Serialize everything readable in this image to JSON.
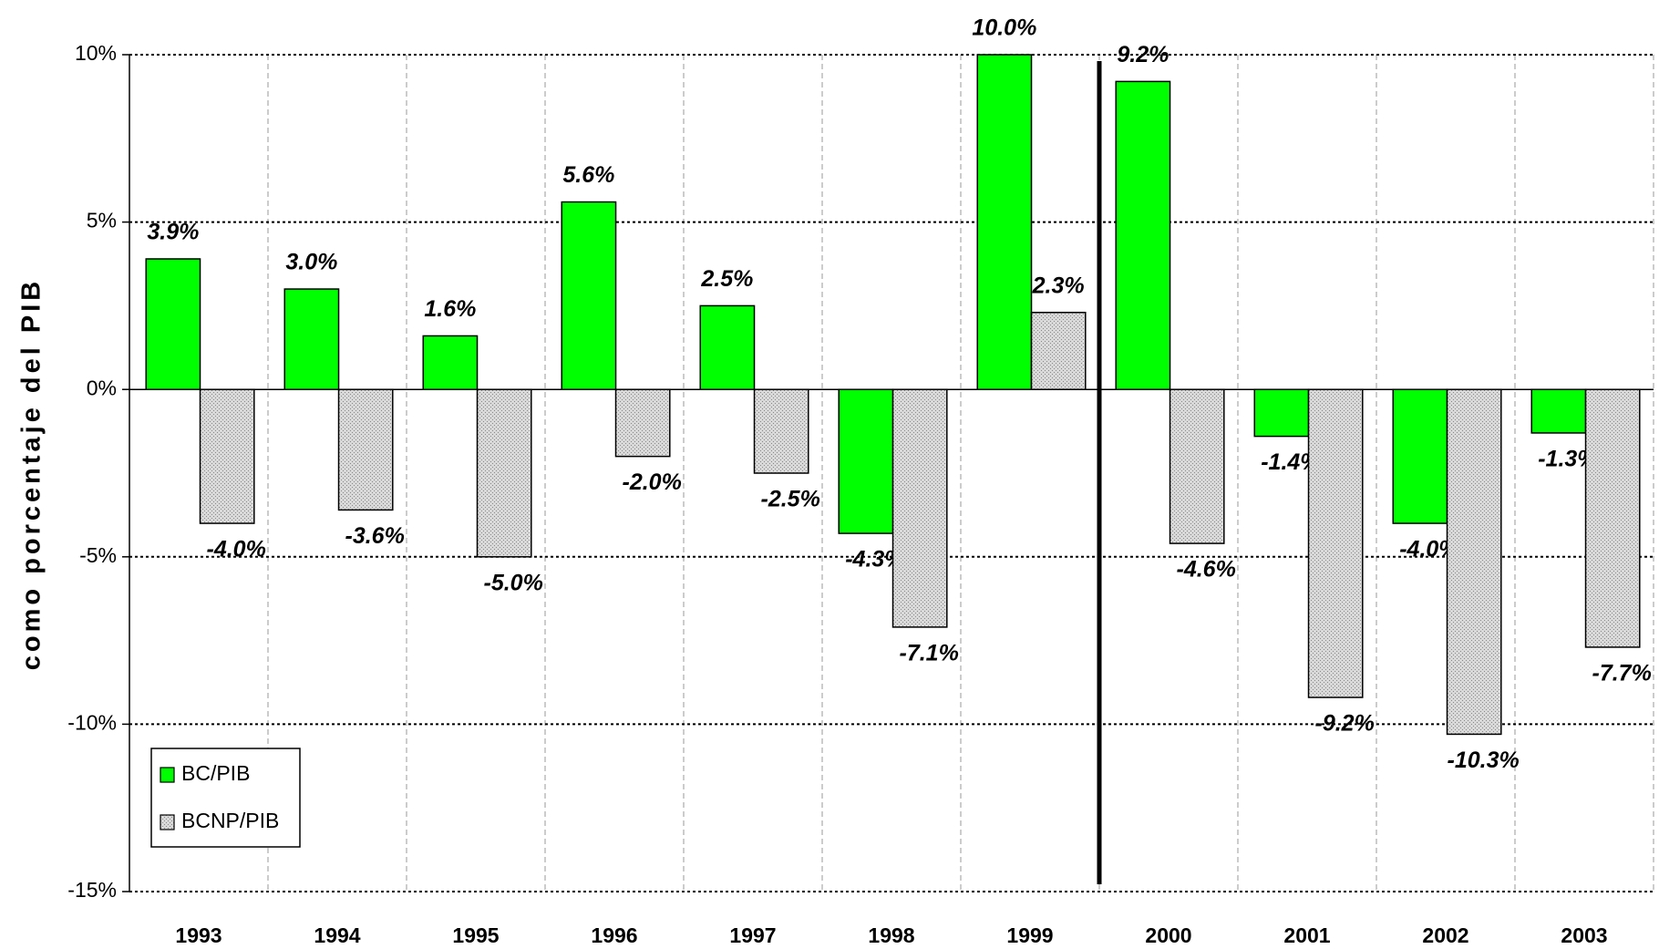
{
  "chart_data": {
    "type": "bar",
    "y_label": "como porcentaje del PIB",
    "categories": [
      "1993",
      "1994",
      "1995",
      "1996",
      "1997",
      "1998",
      "1999",
      "2000",
      "2001",
      "2002",
      "2003"
    ],
    "series": [
      {
        "name": "BC/PIB",
        "color": "#00ff00",
        "values": [
          3.9,
          3.0,
          1.6,
          5.6,
          2.5,
          -4.3,
          10.0,
          9.2,
          -1.4,
          -4.0,
          -1.3
        ],
        "value_labels": [
          "3.9%",
          "3.0%",
          "1.6%",
          "5.6%",
          "2.5%",
          "-4.3%",
          "10.0%",
          "9.2%",
          "-1.4%",
          "-4.0%",
          "-1.3%"
        ]
      },
      {
        "name": "BCNP/PIB",
        "color": "#d9d9d9",
        "values": [
          -4.0,
          -3.6,
          -5.0,
          -2.0,
          -2.5,
          -7.1,
          2.3,
          -4.6,
          -9.2,
          -10.3,
          -7.7
        ],
        "value_labels": [
          "-4.0%",
          "-3.6%",
          "-5.0%",
          "-2.0%",
          "-2.5%",
          "-7.1%",
          "2.3%",
          "-4.6%",
          "-9.2%",
          "-10.3%",
          "-7.7%"
        ]
      }
    ],
    "ylim": [
      -15,
      10
    ],
    "yticks": [
      {
        "value": -15,
        "label": "-15%"
      },
      {
        "value": -10,
        "label": "-10%"
      },
      {
        "value": -5,
        "label": "-5%"
      },
      {
        "value": 0,
        "label": "0%"
      },
      {
        "value": 5,
        "label": "5%"
      },
      {
        "value": 10,
        "label": "10%"
      }
    ],
    "grid": true,
    "legend": "lower left"
  }
}
